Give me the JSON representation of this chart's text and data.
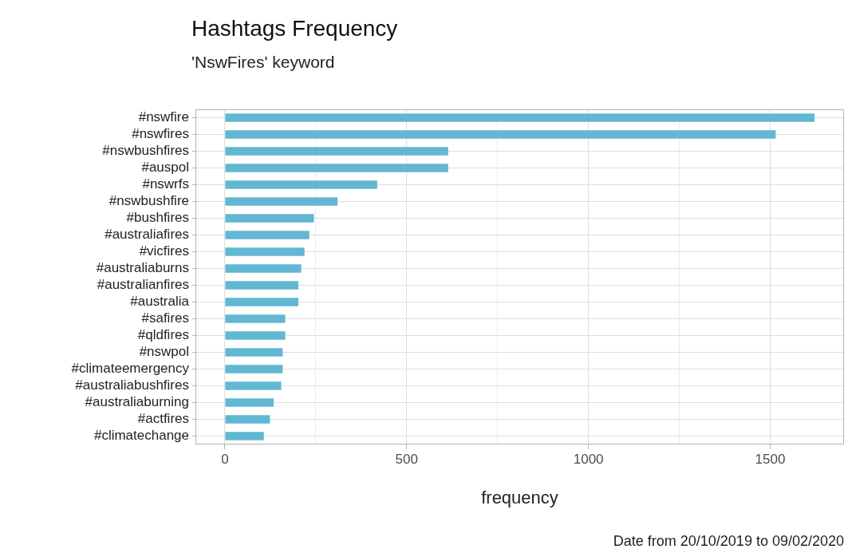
{
  "chart_data": {
    "type": "bar",
    "orientation": "horizontal",
    "title": "Hashtags Frequency",
    "subtitle": "'NswFires' keyword",
    "xlabel": "frequency",
    "categories": [
      "#nswfire",
      "#nswfires",
      "#nswbushfires",
      "#auspol",
      "#nswrfs",
      "#nswbushfire",
      "#bushfires",
      "#australiafires",
      "#vicfires",
      "#australiaburns",
      "#australianfires",
      "#australia",
      "#safires",
      "#qldfires",
      "#nswpol",
      "#climateemergency",
      "#australiabushfires",
      "#australiaburning",
      "#actfires",
      "#climatechange"
    ],
    "values": [
      1622,
      1515,
      614,
      614,
      419,
      310,
      245,
      232,
      219,
      210,
      202,
      202,
      166,
      166,
      159,
      159,
      155,
      134,
      124,
      107
    ],
    "color": "#62b7d3",
    "xlim": [
      -81,
      1703
    ],
    "xticks": [
      0,
      {
        "value": 250,
        "label": null
      },
      500,
      {
        "value": 750,
        "label": null
      },
      1000,
      {
        "value": 1250,
        "label": null
      },
      1500
    ],
    "grid": true,
    "annotations": [
      "Date from 20/10/2019 to 09/02/2020"
    ]
  }
}
